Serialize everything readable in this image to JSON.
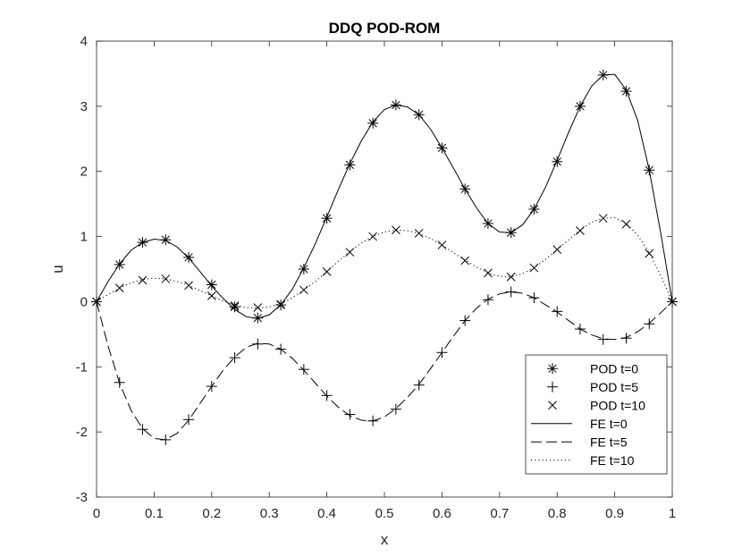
{
  "chart_data": {
    "type": "line",
    "title": "DDQ POD-ROM",
    "xlabel": "x",
    "ylabel": "u",
    "xlim": [
      0,
      1
    ],
    "ylim": [
      -3,
      4
    ],
    "xticks": [
      0,
      0.1,
      0.2,
      0.3,
      0.4,
      0.5,
      0.6,
      0.7,
      0.8,
      0.9,
      1
    ],
    "xtick_labels": [
      "0",
      "0.1",
      "0.2",
      "0.3",
      "0.4",
      "0.5",
      "0.6",
      "0.7",
      "0.8",
      "0.9",
      "1"
    ],
    "yticks": [
      -3,
      -2,
      -1,
      0,
      1,
      2,
      3,
      4
    ],
    "ytick_labels": [
      "-3",
      "-2",
      "-1",
      "0",
      "1",
      "2",
      "3",
      "4"
    ],
    "grid": false,
    "legend_position": "bottom-right",
    "line_color": "#000000",
    "series": [
      {
        "name": "POD t=0",
        "style": "marker",
        "marker": "asterisk",
        "x": [
          0,
          0.04,
          0.08,
          0.12,
          0.16,
          0.2,
          0.24,
          0.28,
          0.32,
          0.36,
          0.4,
          0.44,
          0.48,
          0.52,
          0.56,
          0.6,
          0.64,
          0.68,
          0.72,
          0.76,
          0.8,
          0.84,
          0.88,
          0.92,
          0.96,
          1
        ],
        "y": [
          0,
          0.57,
          0.91,
          0.95,
          0.68,
          0.26,
          -0.08,
          -0.25,
          -0.05,
          0.5,
          1.28,
          2.1,
          2.74,
          3.02,
          2.87,
          2.36,
          1.73,
          1.2,
          1.06,
          1.42,
          2.15,
          3.0,
          3.48,
          3.23,
          2.02,
          0
        ]
      },
      {
        "name": "POD t=5",
        "style": "marker",
        "marker": "plus",
        "x": [
          0,
          0.04,
          0.08,
          0.12,
          0.16,
          0.2,
          0.24,
          0.28,
          0.32,
          0.36,
          0.4,
          0.44,
          0.48,
          0.52,
          0.56,
          0.6,
          0.64,
          0.68,
          0.72,
          0.76,
          0.8,
          0.84,
          0.88,
          0.92,
          0.96,
          1
        ],
        "y": [
          0,
          -1.24,
          -1.96,
          -2.12,
          -1.81,
          -1.3,
          -0.86,
          -0.65,
          -0.73,
          -1.04,
          -1.44,
          -1.73,
          -1.83,
          -1.65,
          -1.28,
          -0.78,
          -0.29,
          0.03,
          0.15,
          0.06,
          -0.15,
          -0.42,
          -0.58,
          -0.56,
          -0.34,
          0
        ]
      },
      {
        "name": "POD t=10",
        "style": "marker",
        "marker": "cross",
        "x": [
          0,
          0.04,
          0.08,
          0.12,
          0.16,
          0.2,
          0.24,
          0.28,
          0.32,
          0.36,
          0.4,
          0.44,
          0.48,
          0.52,
          0.56,
          0.6,
          0.64,
          0.68,
          0.72,
          0.76,
          0.8,
          0.84,
          0.88,
          0.92,
          0.96,
          1
        ],
        "y": [
          0,
          0.21,
          0.33,
          0.35,
          0.25,
          0.09,
          -0.06,
          -0.09,
          -0.04,
          0.18,
          0.46,
          0.76,
          1.0,
          1.1,
          1.05,
          0.87,
          0.63,
          0.44,
          0.38,
          0.52,
          0.8,
          1.09,
          1.28,
          1.19,
          0.74,
          0
        ]
      },
      {
        "name": "FE t=0",
        "style": "line",
        "dash": "solid",
        "x": [
          0,
          0.02,
          0.04,
          0.06,
          0.08,
          0.1,
          0.12,
          0.14,
          0.16,
          0.18,
          0.2,
          0.22,
          0.24,
          0.26,
          0.28,
          0.3,
          0.32,
          0.34,
          0.36,
          0.38,
          0.4,
          0.42,
          0.44,
          0.46,
          0.48,
          0.5,
          0.52,
          0.54,
          0.56,
          0.58,
          0.6,
          0.62,
          0.64,
          0.66,
          0.68,
          0.7,
          0.72,
          0.74,
          0.76,
          0.78,
          0.8,
          0.82,
          0.84,
          0.86,
          0.88,
          0.9,
          0.92,
          0.94,
          0.96,
          0.98,
          1
        ],
        "y": [
          0,
          0.31,
          0.58,
          0.79,
          0.91,
          0.96,
          0.94,
          0.84,
          0.67,
          0.46,
          0.24,
          0.05,
          -0.12,
          -0.23,
          -0.26,
          -0.2,
          -0.05,
          0.19,
          0.52,
          0.89,
          1.3,
          1.72,
          2.12,
          2.47,
          2.76,
          2.95,
          3.02,
          2.99,
          2.87,
          2.65,
          2.36,
          2.05,
          1.73,
          1.44,
          1.2,
          1.07,
          1.06,
          1.18,
          1.42,
          1.76,
          2.17,
          2.6,
          3.0,
          3.31,
          3.48,
          3.49,
          3.25,
          2.78,
          2.02,
          1.05,
          0
        ]
      },
      {
        "name": "FE t=5",
        "style": "line",
        "dash": "dashed",
        "x": [
          0,
          0.02,
          0.04,
          0.06,
          0.08,
          0.1,
          0.12,
          0.14,
          0.16,
          0.18,
          0.2,
          0.22,
          0.24,
          0.26,
          0.28,
          0.3,
          0.32,
          0.34,
          0.36,
          0.38,
          0.4,
          0.42,
          0.44,
          0.46,
          0.48,
          0.5,
          0.52,
          0.54,
          0.56,
          0.58,
          0.6,
          0.62,
          0.64,
          0.66,
          0.68,
          0.7,
          0.72,
          0.74,
          0.76,
          0.78,
          0.8,
          0.82,
          0.84,
          0.86,
          0.88,
          0.9,
          0.92,
          0.94,
          0.96,
          0.98,
          1
        ],
        "y": [
          0,
          -0.68,
          -1.25,
          -1.67,
          -1.95,
          -2.1,
          -2.12,
          -2.02,
          -1.82,
          -1.56,
          -1.3,
          -1.05,
          -0.85,
          -0.7,
          -0.64,
          -0.65,
          -0.73,
          -0.87,
          -1.05,
          -1.25,
          -1.45,
          -1.62,
          -1.75,
          -1.82,
          -1.83,
          -1.77,
          -1.64,
          -1.47,
          -1.27,
          -1.03,
          -0.78,
          -0.53,
          -0.29,
          -0.1,
          0.04,
          0.12,
          0.15,
          0.13,
          0.06,
          -0.05,
          -0.16,
          -0.29,
          -0.42,
          -0.51,
          -0.57,
          -0.58,
          -0.55,
          -0.46,
          -0.33,
          -0.17,
          0
        ]
      },
      {
        "name": "FE t=10",
        "style": "line",
        "dash": "dotted",
        "x": [
          0,
          0.02,
          0.04,
          0.06,
          0.08,
          0.1,
          0.12,
          0.14,
          0.16,
          0.18,
          0.2,
          0.22,
          0.24,
          0.26,
          0.28,
          0.3,
          0.32,
          0.34,
          0.36,
          0.38,
          0.4,
          0.42,
          0.44,
          0.46,
          0.48,
          0.5,
          0.52,
          0.54,
          0.56,
          0.58,
          0.6,
          0.62,
          0.64,
          0.66,
          0.68,
          0.7,
          0.72,
          0.74,
          0.76,
          0.78,
          0.8,
          0.82,
          0.84,
          0.86,
          0.88,
          0.9,
          0.92,
          0.94,
          0.96,
          0.98,
          1
        ],
        "y": [
          0,
          0.11,
          0.21,
          0.29,
          0.34,
          0.36,
          0.35,
          0.31,
          0.25,
          0.17,
          0.09,
          0.01,
          -0.05,
          -0.09,
          -0.1,
          -0.08,
          -0.03,
          0.06,
          0.18,
          0.31,
          0.46,
          0.62,
          0.77,
          0.9,
          1.0,
          1.07,
          1.1,
          1.09,
          1.05,
          0.97,
          0.87,
          0.75,
          0.64,
          0.53,
          0.44,
          0.39,
          0.38,
          0.43,
          0.52,
          0.65,
          0.8,
          0.95,
          1.1,
          1.22,
          1.28,
          1.29,
          1.2,
          1.02,
          0.75,
          0.4,
          0
        ]
      }
    ]
  }
}
